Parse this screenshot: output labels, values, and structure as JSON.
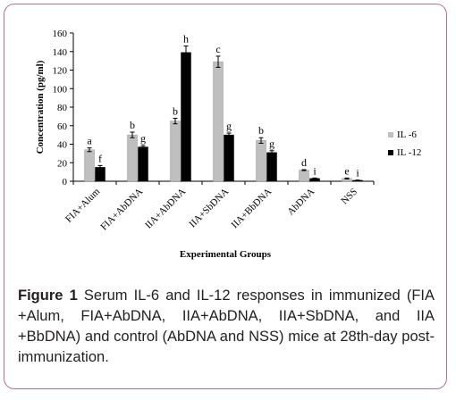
{
  "chart_data": {
    "type": "bar",
    "categories": [
      "FIA+Alum",
      "FIA+AbDNA",
      "IIA+AbDNA",
      "IIA+SbDNA",
      "IIA+BbDNA",
      "AbDNA",
      "NSS"
    ],
    "series": [
      {
        "name": "IL -6",
        "color": "#bfbfbf",
        "values": [
          34,
          50,
          65,
          129,
          44,
          12,
          3
        ],
        "errors": [
          2,
          3,
          3,
          6,
          3,
          0.5,
          0.5
        ],
        "letters": [
          "a",
          "b",
          "b",
          "c",
          "b",
          "d",
          "e"
        ]
      },
      {
        "name": "IL -12",
        "color": "#000000",
        "values": [
          15,
          37,
          139,
          50,
          31,
          3,
          1
        ],
        "errors": [
          2,
          1.5,
          7,
          2,
          2,
          0.5,
          0.3
        ],
        "letters": [
          "f",
          "g",
          "h",
          "g",
          "g",
          "i",
          "i"
        ]
      }
    ],
    "xlabel": "Experimental  Groups",
    "ylabel": "Concentration  (pg/ml)",
    "ylim": [
      0,
      160
    ],
    "yticks": [
      "0",
      "20",
      "40",
      "60",
      "80",
      "100",
      "120",
      "140",
      "160"
    ],
    "grid": false,
    "legend_position": "right"
  },
  "caption": {
    "label": "Figure 1",
    "text": " Serum IL-6 and IL-12 responses in immunized (FIA +Alum, FIA+AbDNA, IIA+AbDNA, IIA+SbDNA, and IIA +BbDNA) and control (AbDNA and NSS) mice at 28th-day post-immunization."
  }
}
